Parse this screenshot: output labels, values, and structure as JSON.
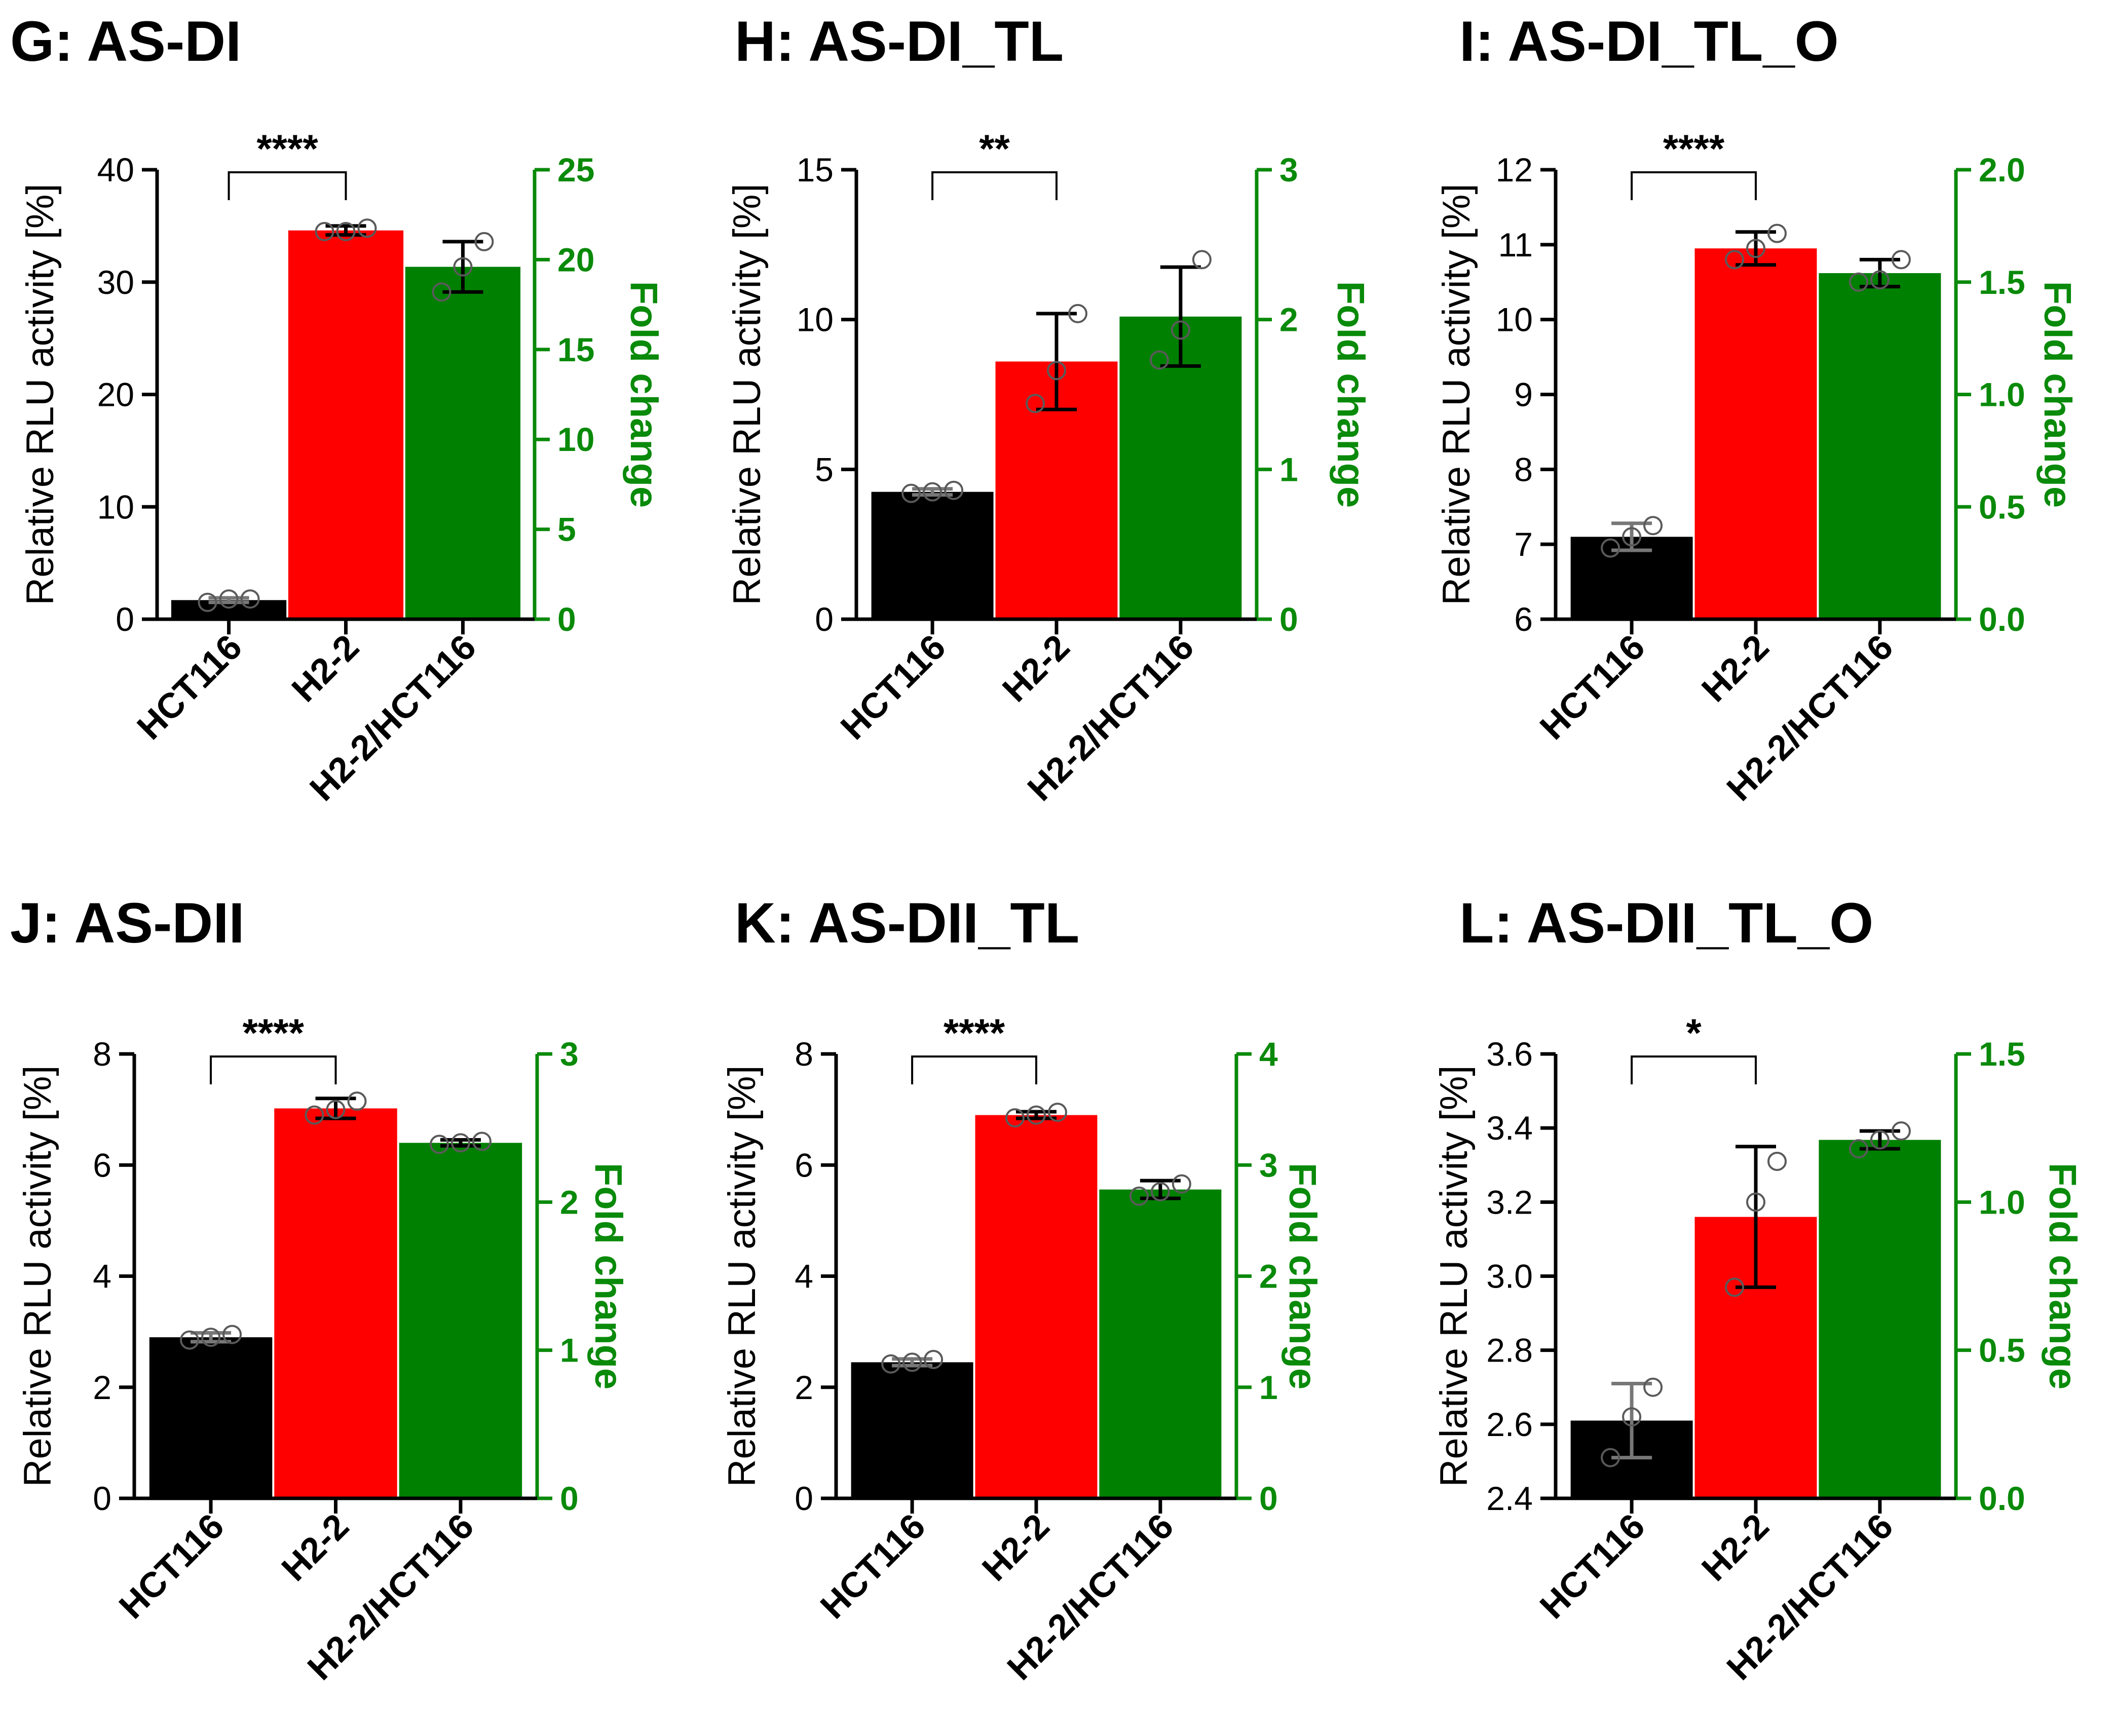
{
  "colors": {
    "axis": "#000000",
    "fold_axis": "#0a8a0a",
    "HCT116": "#000000",
    "H2-2": "#ff0000",
    "H2-2/HCT116": "#008000"
  },
  "chart_data": [
    {
      "type": "bar",
      "title": "G: AS-DI",
      "categories": [
        "HCT116",
        "H2-2",
        "H2-2/HCT116"
      ],
      "ylabel": "Relative RLU activity [%]",
      "y2label": "Fold change",
      "ylim": [
        0,
        40
      ],
      "yticks": [
        0,
        10,
        20,
        30,
        40
      ],
      "ytick_labels": [
        "0",
        "10",
        "20",
        "30",
        "40"
      ],
      "y2lim": [
        0,
        25
      ],
      "y2ticks": [
        0,
        5,
        10,
        15,
        20,
        25
      ],
      "y2tick_labels": [
        "0",
        "5",
        "10",
        "15",
        "20",
        "25"
      ],
      "series": [
        {
          "name": "HCT116",
          "axis": "left",
          "value": 1.7,
          "error": 0.2,
          "points": [
            1.5,
            1.8,
            1.8
          ]
        },
        {
          "name": "H2-2",
          "axis": "left",
          "value": 34.6,
          "error": 0.4,
          "points": [
            34.5,
            34.5,
            34.8
          ]
        },
        {
          "name": "H2-2/HCT116",
          "axis": "right",
          "value": 19.6,
          "error": 1.4,
          "points": [
            18.2,
            19.6,
            21.0
          ]
        }
      ],
      "significance": {
        "from": "HCT116",
        "to": "H2-2",
        "label": "****"
      }
    },
    {
      "type": "bar",
      "title": "H: AS-DI_TL",
      "categories": [
        "HCT116",
        "H2-2",
        "H2-2/HCT116"
      ],
      "ylabel": "Relative RLU activity [%]",
      "y2label": "Fold change",
      "ylim": [
        0,
        15
      ],
      "yticks": [
        0,
        5,
        10,
        15
      ],
      "ytick_labels": [
        "0",
        "5",
        "10",
        "15"
      ],
      "y2lim": [
        0,
        3
      ],
      "y2ticks": [
        0,
        1,
        2,
        3
      ],
      "y2tick_labels": [
        "0",
        "1",
        "2",
        "3"
      ],
      "series": [
        {
          "name": "HCT116",
          "axis": "left",
          "value": 4.25,
          "error": 0.1,
          "points": [
            4.2,
            4.25,
            4.3
          ]
        },
        {
          "name": "H2-2",
          "axis": "left",
          "value": 8.6,
          "error": 1.6,
          "points": [
            7.2,
            8.3,
            10.2
          ]
        },
        {
          "name": "H2-2/HCT116",
          "axis": "right",
          "value": 2.02,
          "error": 0.33,
          "points": [
            1.73,
            1.93,
            2.4
          ]
        }
      ],
      "significance": {
        "from": "HCT116",
        "to": "H2-2",
        "label": "**"
      }
    },
    {
      "type": "bar",
      "title": "I: AS-DI_TL_O",
      "categories": [
        "HCT116",
        "H2-2",
        "H2-2/HCT116"
      ],
      "ylabel": "Relative RLU activity [%]",
      "y2label": "Fold change",
      "ylim": [
        6,
        12
      ],
      "yticks": [
        6,
        7,
        8,
        9,
        10,
        11,
        12
      ],
      "ytick_labels": [
        "6",
        "7",
        "8",
        "9",
        "10",
        "11",
        "12"
      ],
      "y2lim": [
        0,
        2
      ],
      "y2ticks": [
        0,
        0.5,
        1,
        1.5,
        2
      ],
      "y2tick_labels": [
        "0.0",
        "0.5",
        "1.0",
        "1.5",
        "2.0"
      ],
      "series": [
        {
          "name": "HCT116",
          "axis": "left",
          "value": 7.1,
          "error": 0.18,
          "points": [
            6.95,
            7.1,
            7.25
          ]
        },
        {
          "name": "H2-2",
          "axis": "left",
          "value": 10.95,
          "error": 0.22,
          "points": [
            10.8,
            10.95,
            11.15
          ]
        },
        {
          "name": "H2-2/HCT116",
          "axis": "right",
          "value": 1.54,
          "error": 0.06,
          "points": [
            1.5,
            1.51,
            1.6
          ]
        }
      ],
      "significance": {
        "from": "HCT116",
        "to": "H2-2",
        "label": "****"
      }
    },
    {
      "type": "bar",
      "title": "J: AS-DII",
      "categories": [
        "HCT116",
        "H2-2",
        "H2-2/HCT116"
      ],
      "ylabel": "Relative RLU activity [%]",
      "y2label": "Fold change",
      "ylim": [
        0,
        8
      ],
      "yticks": [
        0,
        2,
        4,
        6,
        8
      ],
      "ytick_labels": [
        "0",
        "2",
        "4",
        "6",
        "8"
      ],
      "y2lim": [
        0,
        3
      ],
      "y2ticks": [
        0,
        1,
        2,
        3
      ],
      "y2tick_labels": [
        "0",
        "1",
        "2",
        "3"
      ],
      "series": [
        {
          "name": "HCT116",
          "axis": "left",
          "value": 2.9,
          "error": 0.08,
          "points": [
            2.85,
            2.9,
            2.95
          ]
        },
        {
          "name": "H2-2",
          "axis": "left",
          "value": 7.02,
          "error": 0.18,
          "points": [
            6.9,
            7.0,
            7.15
          ]
        },
        {
          "name": "H2-2/HCT116",
          "axis": "right",
          "value": 2.4,
          "error": 0.02,
          "points": [
            2.39,
            2.4,
            2.41
          ]
        }
      ],
      "significance": {
        "from": "HCT116",
        "to": "H2-2",
        "label": "****"
      }
    },
    {
      "type": "bar",
      "title": "K: AS-DII_TL",
      "categories": [
        "HCT116",
        "H2-2",
        "H2-2/HCT116"
      ],
      "ylabel": "Relative RLU activity [%]",
      "y2label": "Fold change",
      "ylim": [
        0,
        8
      ],
      "yticks": [
        0,
        2,
        4,
        6,
        8
      ],
      "ytick_labels": [
        "0",
        "2",
        "4",
        "6",
        "8"
      ],
      "y2lim": [
        0,
        4
      ],
      "y2ticks": [
        0,
        1,
        2,
        3,
        4
      ],
      "y2tick_labels": [
        "0",
        "1",
        "2",
        "3",
        "4"
      ],
      "series": [
        {
          "name": "HCT116",
          "axis": "left",
          "value": 2.45,
          "error": 0.06,
          "points": [
            2.42,
            2.45,
            2.5
          ]
        },
        {
          "name": "H2-2",
          "axis": "left",
          "value": 6.9,
          "error": 0.06,
          "points": [
            6.85,
            6.9,
            6.95
          ]
        },
        {
          "name": "H2-2/HCT116",
          "axis": "right",
          "value": 2.78,
          "error": 0.08,
          "points": [
            2.72,
            2.76,
            2.83
          ]
        }
      ],
      "significance": {
        "from": "HCT116",
        "to": "H2-2",
        "label": "****"
      }
    },
    {
      "type": "bar",
      "title": "L: AS-DII_TL_O",
      "categories": [
        "HCT116",
        "H2-2",
        "H2-2/HCT116"
      ],
      "ylabel": "Relative RLU activity [%]",
      "y2label": "Fold change",
      "ylim": [
        2.4,
        3.6
      ],
      "yticks": [
        2.4,
        2.6,
        2.8,
        3.0,
        3.2,
        3.4,
        3.6
      ],
      "ytick_labels": [
        "2.4",
        "2.6",
        "2.8",
        "3.0",
        "3.2",
        "3.4",
        "3.6"
      ],
      "y2lim": [
        0,
        1.5
      ],
      "y2ticks": [
        0,
        0.5,
        1,
        1.5
      ],
      "y2tick_labels": [
        "0.0",
        "0.5",
        "1.0",
        "1.5"
      ],
      "series": [
        {
          "name": "HCT116",
          "axis": "left",
          "value": 2.61,
          "error": 0.1,
          "points": [
            2.51,
            2.62,
            2.7
          ]
        },
        {
          "name": "H2-2",
          "axis": "left",
          "value": 3.16,
          "error": 0.19,
          "points": [
            2.97,
            3.2,
            3.31
          ]
        },
        {
          "name": "H2-2/HCT116",
          "axis": "right",
          "value": 1.21,
          "error": 0.03,
          "points": [
            1.18,
            1.21,
            1.24
          ]
        }
      ],
      "significance": {
        "from": "HCT116",
        "to": "H2-2",
        "label": "*"
      }
    }
  ]
}
